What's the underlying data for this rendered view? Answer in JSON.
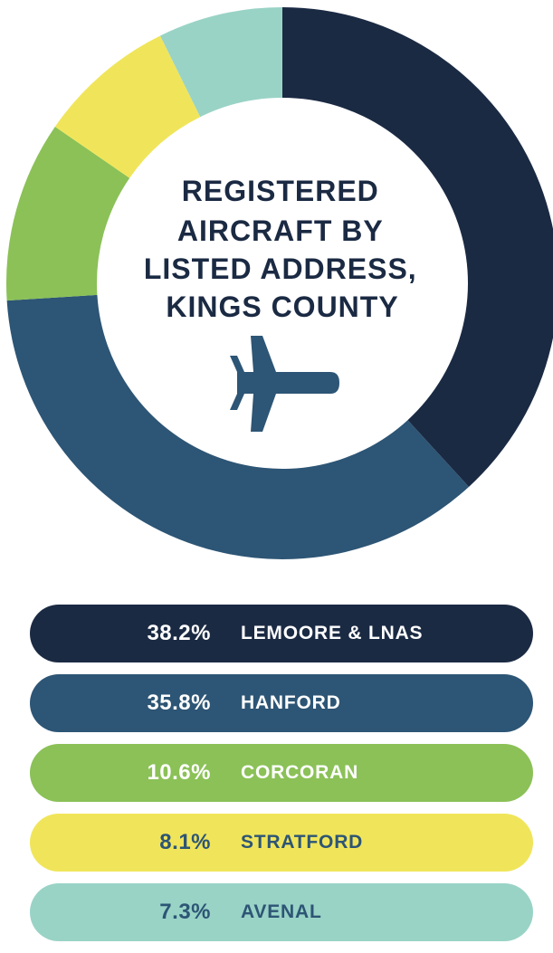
{
  "chart_data": {
    "type": "pie",
    "variant": "donut",
    "title_lines": [
      "REGISTERED",
      "AIRCRAFT BY",
      "LISTED ADDRESS,",
      "KINGS COUNTY"
    ],
    "center_icon": "airplane-icon",
    "slices": [
      {
        "label": "LEMOORE & LNAS",
        "value": 38.2,
        "value_text": "38.2%",
        "color": "#1b2a43",
        "text_color": "#ffffff"
      },
      {
        "label": "HANFORD",
        "value": 35.8,
        "value_text": "35.8%",
        "color": "#2d5575",
        "text_color": "#ffffff"
      },
      {
        "label": "CORCORAN",
        "value": 10.6,
        "value_text": "10.6%",
        "color": "#8bc157",
        "text_color": "#ffffff"
      },
      {
        "label": "STRATFORD",
        "value": 8.1,
        "value_text": "8.1%",
        "color": "#f0e55a",
        "text_color": "#2d5575"
      },
      {
        "label": "AVENAL",
        "value": 7.3,
        "value_text": "7.3%",
        "color": "#99d3c6",
        "text_color": "#2d5575"
      }
    ],
    "legend_position": "bottom"
  },
  "colors": {
    "title_text": "#1b2a43",
    "icon": "#2d5575",
    "background": "#ffffff"
  }
}
